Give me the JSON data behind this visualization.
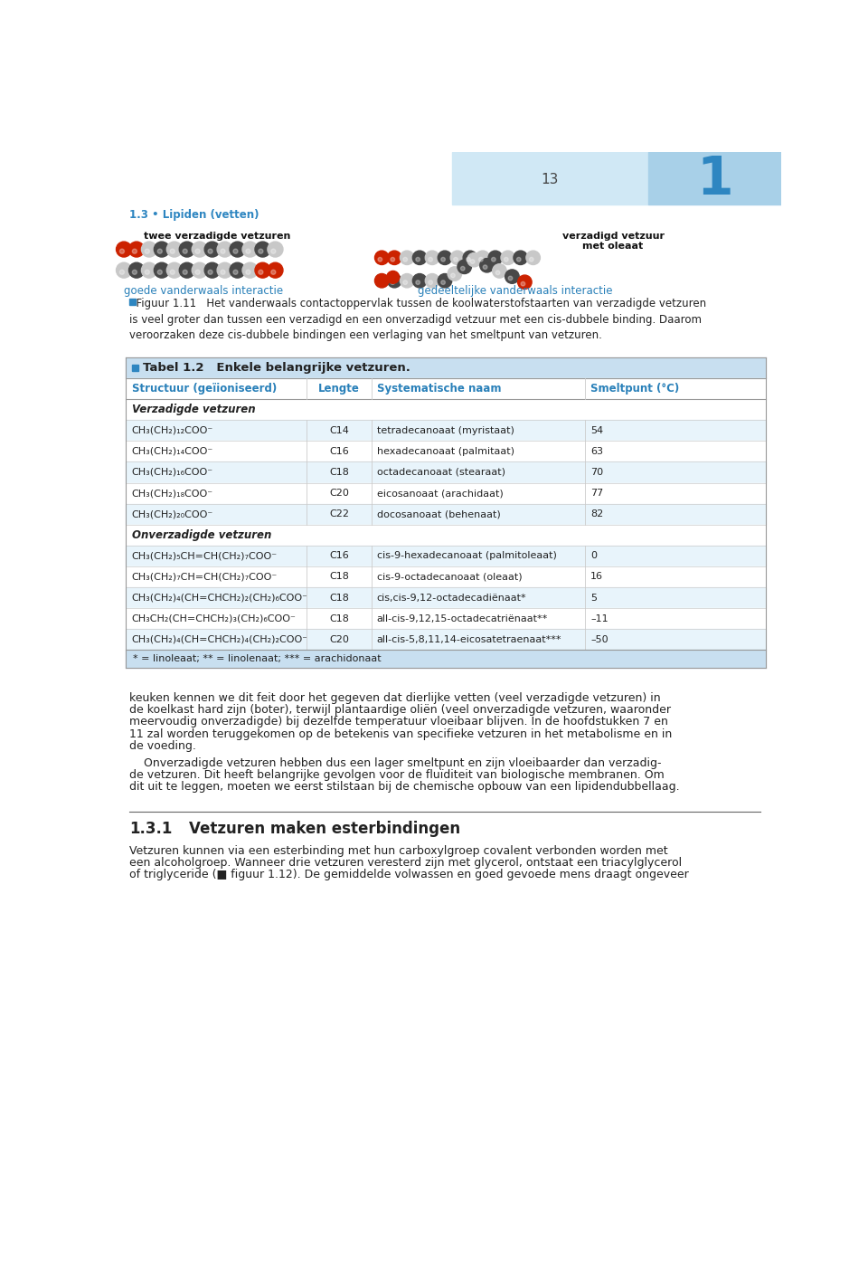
{
  "page_bg": "#ffffff",
  "header_left_bg": "#d6eaf8",
  "header_right_bg": "#aed6f1",
  "header_number_color": "#2e86c1",
  "tabel_header_bg": "#c8dff0",
  "tabel_col_header_bg": "#ffffff",
  "tabel_row_alt_bg": "#e8f4fb",
  "tabel_row_bg": "#ffffff",
  "tabel_border": "#aaaaaa",
  "blue_text": "#2980b9",
  "dark_text": "#222222",
  "mid_gray": "#888888",
  "top_label": "1.3 • Lipiden (vetten)",
  "page_number": "13",
  "chapter_number": "1",
  "figure_caption_bold": "■ Figuur 1.11",
  "figure_caption_rest": "  Het vanderwaals contactoppervlak tussen de koolwaterstofstaarten van verzadigde vetzuren is veel groter dan tussen een verzadigd en een onverzadigd vetzuur met een cis-dubbele binding. Daarom veroorzaken deze cis-dubbele bindingen een verlaging van het smeltpunt van vetzuren.",
  "tabel_title": "Tabel 1.2   Enkele belangrijke vetzuren.",
  "col_headers": [
    "Structuur (geïioniseerd)",
    "Lengte",
    "Systematische naam",
    "Smeltpunt (°C)"
  ],
  "section1_header": "Verzadigde vetzuren",
  "verzadigde_rows": [
    [
      "CH₃(CH₂)₁₂COO⁻",
      "C14",
      "tetradecanoaat (myristaat)",
      "54"
    ],
    [
      "CH₃(CH₂)₁₄COO⁻",
      "C16",
      "hexadecanoaat (palmitaat)",
      "63"
    ],
    [
      "CH₃(CH₂)₁₆COO⁻",
      "C18",
      "octadecanoaat (stearaat)",
      "70"
    ],
    [
      "CH₃(CH₂)₁₈COO⁻",
      "C20",
      "eicosanoaat (arachidaat)",
      "77"
    ],
    [
      "CH₃(CH₂)₂₀COO⁻",
      "C22",
      "docosanoaat (behenaat)",
      "82"
    ]
  ],
  "section2_header": "Onverzadigde vetzuren",
  "onverzadigde_rows": [
    [
      "CH₃(CH₂)₅CH=CH(CH₂)₇COO⁻",
      "C16",
      "cis-9-hexadecanoaat (palmitoleaat)",
      "0"
    ],
    [
      "CH₃(CH₂)₇CH=CH(CH₂)₇COO⁻",
      "C18",
      "cis-9-octadecanoaat (oleaat)",
      "16"
    ],
    [
      "CH₃(CH₂)₄(CH=CHCH₂)₂(CH₂)₆COO⁻",
      "C18",
      "cis,cis-9,12-octadecadiënaat*",
      "5"
    ],
    [
      "CH₃CH₂(CH=CHCH₂)₃(CH₂)₆COO⁻",
      "C18",
      "all-cis-9,12,15-octadecatriënaat**",
      "–11"
    ],
    [
      "CH₃(CH₂)₄(CH=CHCH₂)₄(CH₂)₂COO⁻",
      "C20",
      "all-cis-5,8,11,14-eicosatetraenaat***",
      "–50"
    ]
  ],
  "footnote": "* = linoleaat; ** = linolenaat; *** = arachidonaat",
  "body_text1": "keuken kennen we dit feit door het gegeven dat dierlijke vetten (veel verzadigde vetzuren) in de koelkast hard zijn (boter), terwijl plantaardige oliën (veel onverzadigde vetzuren, waaronder meervoudig onverzadigde) bij dezelfde temperatuur vloeibaar blijven. In de hoofdstukken 7 en 11 zal worden teruggekomen op de betekenis van specifieke vetzuren in het metabolisme en in de voeding.",
  "body_text2_indent": "    Onverzadigde vetzuren hebben dus een lager smeltpunt en zijn vloeibaarder dan verzadig-de vetzuren. Dit heeft belangrijke gevolgen voor de fluïditeit van biologische membranen. Om dit uit te leggen, moeten we eerst stilstaan bij de chemische opbouw van een lipidendubbellaag.",
  "section_title_num": "1.3.1",
  "section_title_text": "Vetzuren maken esterbindingen",
  "body_text3_italic": "esterbinding",
  "body_text3a": "Vetzuren kunnen via een ",
  "body_text3b": " met hun carboxylgroep covalent verbonden worden met een alcoholgroep. Wanneer drie vetzuren veresterd zijn met ",
  "body_text3c": "glycerol",
  "body_text3d": ", ontstaat een ",
  "body_text3e": "triacylglycerol",
  "body_text3f": " of ",
  "body_text3g": "triglyceride",
  "body_text3h": " (■ figuur 1.12). De gemiddelde volwassen en goed gevoede mens draagt ongeveer"
}
